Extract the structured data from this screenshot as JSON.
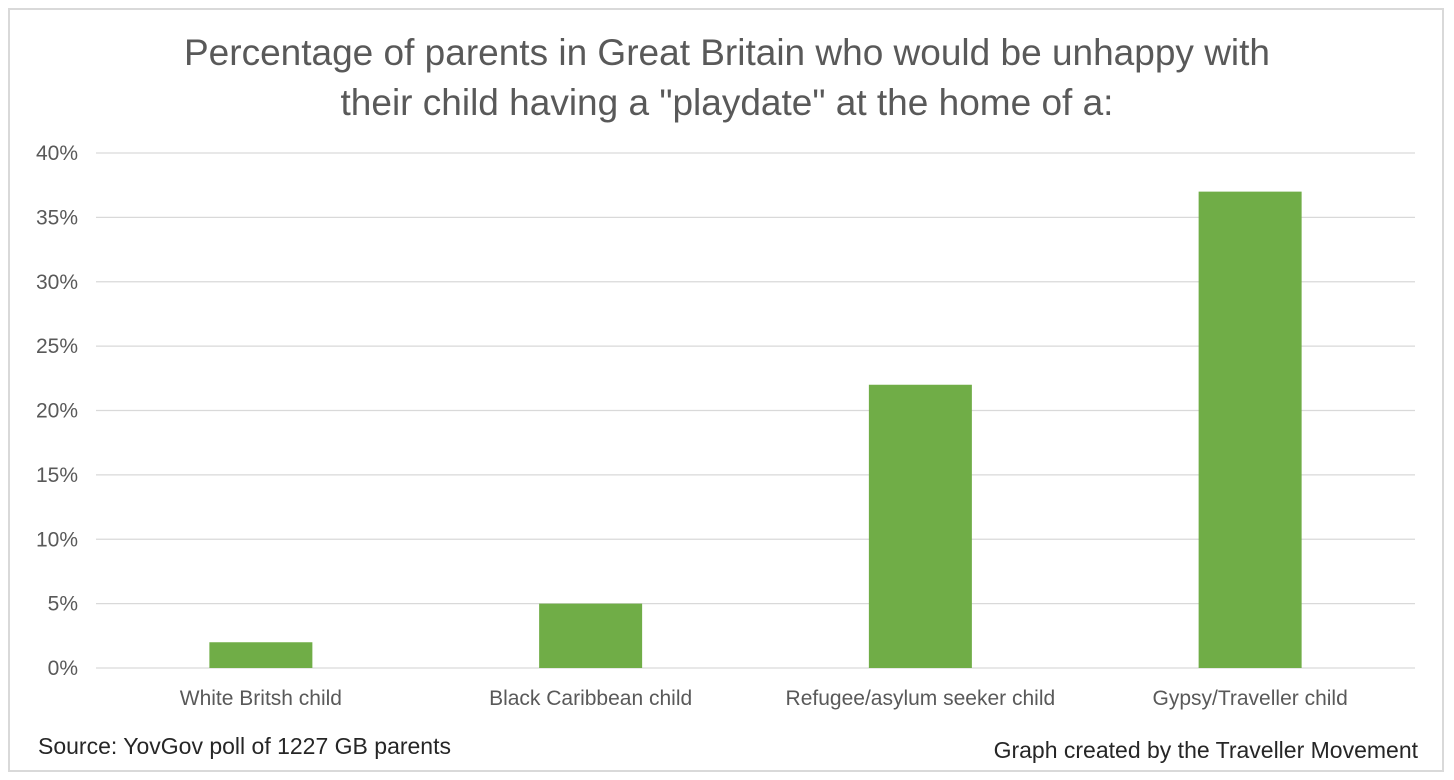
{
  "chart_data": {
    "type": "bar",
    "title_lines": [
      "Percentage of parents in Great Britain who would be unhappy with",
      "their child having a \"playdate\" at the home of a:"
    ],
    "categories": [
      "White Britsh child",
      "Black Caribbean child",
      "Refugee/asylum seeker child",
      "Gypsy/Traveller child"
    ],
    "values": [
      2,
      5,
      22,
      37
    ],
    "ylim": [
      0,
      40
    ],
    "yticks": [
      0,
      5,
      10,
      15,
      20,
      25,
      30,
      35,
      40
    ],
    "ytick_format": "%",
    "xlabel": "",
    "ylabel": "",
    "grid": true,
    "legend": "none",
    "bar_color": "#70ad47",
    "grid_color": "#d9d9d9"
  },
  "footer": {
    "source": "Source: YovGov poll of 1227 GB parents",
    "credit": "Graph created by the Traveller Movement"
  }
}
